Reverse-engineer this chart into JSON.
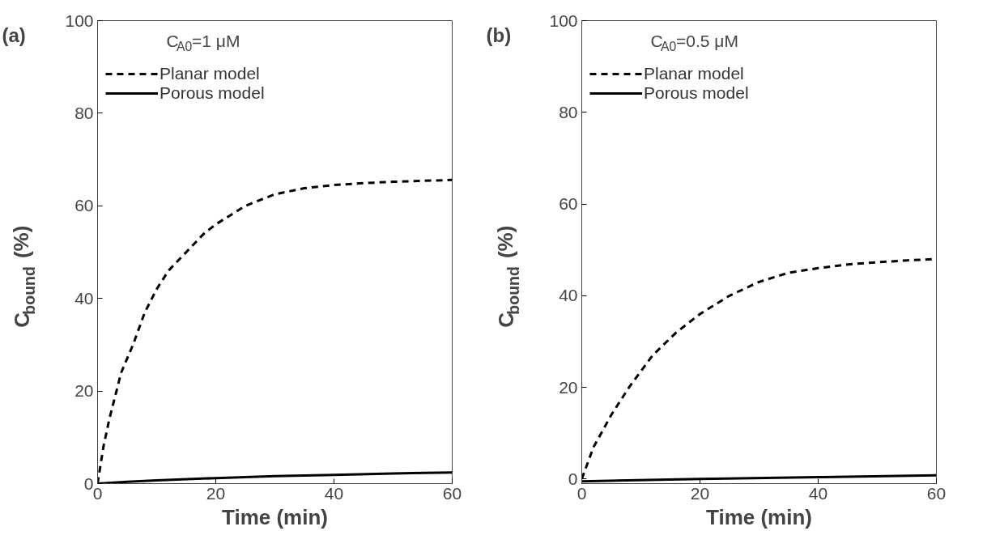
{
  "chart_data": [
    {
      "type": "line",
      "title": "(a)",
      "xlabel": "Time (min)",
      "ylabel": "C$_{bound}$ (%)",
      "legend_title": "C$_{A0}$=1 μM",
      "legend": "top left",
      "xlim": [
        0,
        60
      ],
      "ylim": [
        0,
        100
      ],
      "xticks": [
        0,
        20,
        40,
        60
      ],
      "yticks": [
        0,
        20,
        40,
        60,
        80,
        100
      ],
      "grid": false,
      "series": [
        {
          "name": "Planar model",
          "color": "#000000",
          "line_style": "dashed",
          "x": [
            0,
            1,
            2,
            4,
            6,
            8,
            10,
            12,
            15,
            18,
            20,
            25,
            30,
            35,
            40,
            45,
            50,
            55,
            60
          ],
          "values": [
            0,
            8,
            14,
            24,
            30,
            37,
            42,
            46,
            50,
            54,
            56,
            60,
            62.5,
            63.8,
            64.5,
            64.9,
            65.2,
            65.4,
            65.6
          ]
        },
        {
          "name": "Porous model",
          "color": "#000000",
          "line_style": "solid",
          "x": [
            0,
            5,
            10,
            20,
            30,
            40,
            50,
            60
          ],
          "values": [
            0,
            0.4,
            0.7,
            1.2,
            1.6,
            1.9,
            2.2,
            2.4
          ]
        }
      ]
    },
    {
      "type": "line",
      "title": "(b)",
      "xlabel": "Time (min)",
      "ylabel": "C$_{bound}$ (%)",
      "legend_title": "C$_{A0}$=0.5 μM",
      "legend": "top left",
      "xlim": [
        0,
        60
      ],
      "ylim": [
        -1,
        100
      ],
      "xticks": [
        0,
        20,
        40,
        60
      ],
      "yticks": [
        0,
        20,
        40,
        60,
        80,
        100
      ],
      "grid": false,
      "series": [
        {
          "name": "Planar model",
          "color": "#000000",
          "line_style": "dashed",
          "x": [
            0,
            2,
            5,
            8,
            12,
            16,
            20,
            25,
            30,
            35,
            40,
            45,
            50,
            55,
            60
          ],
          "values": [
            0,
            7,
            14,
            20,
            27,
            32,
            36,
            40,
            43,
            45,
            46,
            46.8,
            47.3,
            47.7,
            48
          ]
        },
        {
          "name": "Porous model",
          "color": "#000000",
          "line_style": "solid",
          "x": [
            0,
            20,
            40,
            60
          ],
          "values": [
            -0.5,
            0,
            0.4,
            0.8
          ]
        }
      ]
    }
  ]
}
